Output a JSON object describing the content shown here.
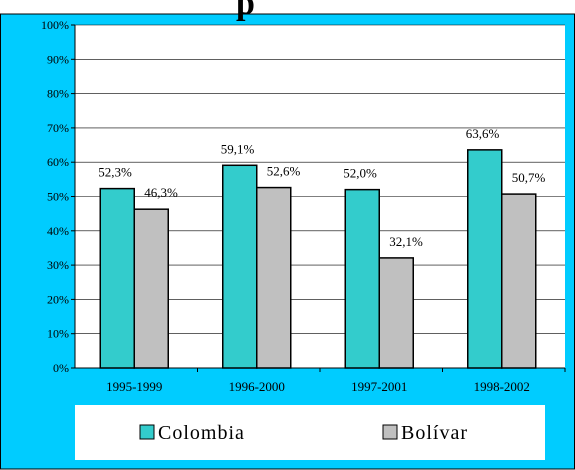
{
  "chart_data": {
    "type": "bar",
    "title": "",
    "title_fragment": "p",
    "categories": [
      "1995-1999",
      "1996-2000",
      "1997-2001",
      "1998-2002"
    ],
    "series": [
      {
        "name": "Colombia",
        "color": "#33CCCC",
        "values": [
          52.3,
          59.1,
          52.0,
          63.6
        ],
        "labels": [
          "52,3%",
          "59,1%",
          "52,0%",
          "63,6%"
        ]
      },
      {
        "name": "Bolívar",
        "color": "#C0C0C0",
        "values": [
          46.3,
          52.6,
          32.1,
          50.7
        ],
        "labels": [
          "46,3%",
          "52,6%",
          "32,1%",
          "50,7%"
        ]
      }
    ],
    "ylim": [
      0,
      100
    ],
    "yticks": [
      "0%",
      "10%",
      "20%",
      "30%",
      "40%",
      "50%",
      "60%",
      "70%",
      "80%",
      "90%",
      "100%"
    ],
    "grid": true,
    "legend": "bottom",
    "frame_color": "#00CCFF",
    "plot_bg": "#FFFFFF"
  }
}
